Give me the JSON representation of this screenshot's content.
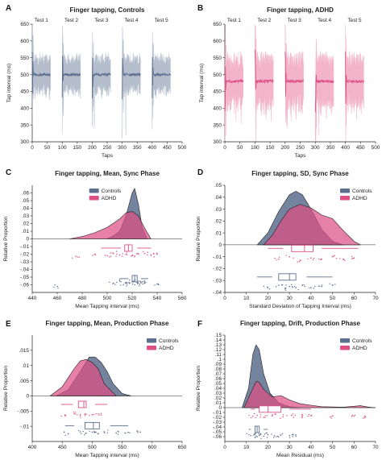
{
  "colors": {
    "controls": "#5c6f8e",
    "adhd": "#de4f84",
    "controls_light": "#b3bdcc",
    "adhd_light": "#f3b4c9"
  },
  "chart_data": [
    {
      "panel": "A",
      "type": "line",
      "title": "Finger tapping, Controls",
      "xlabel": "Taps",
      "ylabel": "Tap interval (ms)",
      "xlim": [
        0,
        500
      ],
      "ylim": [
        300,
        650
      ],
      "xticks": [
        0,
        50,
        100,
        150,
        200,
        250,
        300,
        350,
        400,
        450,
        500
      ],
      "yticks": [
        300,
        350,
        400,
        450,
        500,
        550,
        600,
        650
      ],
      "tests": [
        "Test 1",
        "Test 2",
        "Test 3",
        "Test 4",
        "Test 5"
      ],
      "test_ranges": [
        [
          0,
          61
        ],
        [
          100,
          161
        ],
        [
          200,
          261
        ],
        [
          300,
          361
        ],
        [
          400,
          461
        ]
      ],
      "series": [
        {
          "name": "Controls",
          "values": "mean ≈ 500 ms, band ≈ ±50 ms"
        }
      ]
    },
    {
      "panel": "B",
      "type": "line",
      "title": "Finger tapping, ADHD",
      "xlabel": "Taps",
      "ylabel": "Tap interval (ms)",
      "xlim": [
        0,
        500
      ],
      "ylim": [
        300,
        650
      ],
      "xticks": [
        0,
        50,
        100,
        150,
        200,
        250,
        300,
        350,
        400,
        450,
        500
      ],
      "yticks": [
        300,
        350,
        400,
        450,
        500,
        550,
        600,
        650
      ],
      "tests": [
        "Test 1",
        "Test 2",
        "Test 3",
        "Test 4",
        "Test 5"
      ],
      "test_ranges": [
        [
          0,
          61
        ],
        [
          100,
          161
        ],
        [
          200,
          261
        ],
        [
          300,
          361
        ],
        [
          400,
          461
        ]
      ],
      "series": [
        {
          "name": "ADHD",
          "values": "mean ≈ 480 ms, band ≈ ±70 ms"
        }
      ]
    },
    {
      "panel": "C",
      "type": "area",
      "title": "Finger tapping, Mean, Sync Phase",
      "xlabel": "Mean Tapping interval (ms)",
      "ylabel": "Relative Proportion",
      "xlim": [
        440,
        560
      ],
      "ylim": [
        -0.07,
        0.07
      ],
      "xticks": [
        440,
        460,
        480,
        500,
        520,
        540,
        560
      ],
      "yticks": [
        -0.06,
        -0.05,
        -0.04,
        -0.03,
        -0.02,
        -0.01,
        0,
        0.01,
        0.02,
        0.03,
        0.04,
        0.05,
        0.06
      ],
      "legend": [
        "Controls",
        "ADHD"
      ],
      "legend_position": "top-left",
      "series": [
        {
          "name": "Controls",
          "density_x": [
            500,
            505,
            510,
            515,
            520,
            522,
            525,
            528,
            532
          ],
          "density_y": [
            0,
            0.004,
            0.01,
            0.03,
            0.06,
            0.066,
            0.045,
            0.015,
            0
          ],
          "box": [
            517,
            520,
            522,
            524,
            527
          ],
          "whiskers": [
            510,
            533
          ],
          "box_y": -0.052,
          "points": [
            [
              505,
              -0.058
            ],
            [
              510,
              -0.055
            ],
            [
              513,
              -0.06
            ],
            [
              515,
              -0.057
            ],
            [
              518,
              -0.058
            ],
            [
              520,
              -0.056
            ],
            [
              522,
              -0.06
            ],
            [
              524,
              -0.057
            ],
            [
              526,
              -0.059
            ],
            [
              528,
              -0.056
            ],
            [
              530,
              -0.058
            ],
            [
              460,
              -0.062
            ],
            [
              540,
              -0.059
            ]
          ]
        },
        {
          "name": "ADHD",
          "density_x": [
            470,
            480,
            490,
            500,
            510,
            515,
            520,
            525,
            530,
            535
          ],
          "density_y": [
            0,
            0.003,
            0.008,
            0.015,
            0.026,
            0.034,
            0.036,
            0.03,
            0.014,
            0
          ],
          "box": [
            511,
            514,
            517,
            520,
            524
          ],
          "whiskers": [
            495,
            535
          ],
          "box_y": -0.012,
          "points": [
            [
              475,
              -0.023
            ],
            [
              490,
              -0.02
            ],
            [
              500,
              -0.022
            ],
            [
              505,
              -0.019
            ],
            [
              510,
              -0.021
            ],
            [
              515,
              -0.02
            ],
            [
              520,
              -0.022
            ],
            [
              525,
              -0.02
            ],
            [
              530,
              -0.019
            ],
            [
              535,
              -0.021
            ],
            [
              540,
              -0.02
            ]
          ]
        }
      ]
    },
    {
      "panel": "D",
      "type": "area",
      "title": "Finger tapping, SD, Sync Phase",
      "xlabel": "Standard Deviation of Tapping Interval (ms)",
      "ylabel": "Relative Proportion",
      "xlim": [
        0,
        70
      ],
      "ylim": [
        -0.04,
        0.05
      ],
      "xticks": [
        0,
        10,
        20,
        30,
        40,
        50,
        60,
        70
      ],
      "yticks": [
        -0.04,
        -0.03,
        -0.02,
        -0.01,
        0,
        0.01,
        0.02,
        0.03,
        0.04,
        0.05
      ],
      "legend": [
        "Controls",
        "ADHD"
      ],
      "legend_position": "top-right",
      "series": [
        {
          "name": "Controls",
          "density_x": [
            15,
            20,
            25,
            30,
            33,
            36,
            40,
            45,
            50,
            55
          ],
          "density_y": [
            0,
            0.01,
            0.028,
            0.042,
            0.045,
            0.042,
            0.03,
            0.013,
            0.003,
            0
          ],
          "box": [
            22,
            25,
            30,
            33,
            38
          ],
          "whiskers": [
            15,
            50
          ],
          "box_y": -0.027,
          "points": [
            [
              20,
              -0.036
            ],
            [
              25,
              -0.034
            ],
            [
              28,
              -0.037
            ],
            [
              30,
              -0.035
            ],
            [
              33,
              -0.036
            ],
            [
              36,
              -0.034
            ],
            [
              40,
              -0.036
            ],
            [
              45,
              -0.035
            ],
            [
              50,
              -0.034
            ]
          ]
        },
        {
          "name": "ADHD",
          "density_x": [
            18,
            22,
            26,
            30,
            35,
            40,
            45,
            50,
            55,
            60,
            63
          ],
          "density_y": [
            0,
            0.008,
            0.02,
            0.03,
            0.034,
            0.031,
            0.025,
            0.022,
            0.012,
            0.003,
            0
          ],
          "box": [
            27,
            31,
            37,
            41,
            45
          ],
          "whiskers": [
            20,
            62
          ],
          "box_y": -0.003,
          "points": [
            [
              25,
              -0.012
            ],
            [
              30,
              -0.01
            ],
            [
              35,
              -0.013
            ],
            [
              40,
              -0.011
            ],
            [
              45,
              -0.012
            ],
            [
              50,
              -0.01
            ],
            [
              55,
              -0.012
            ],
            [
              60,
              -0.011
            ]
          ]
        }
      ]
    },
    {
      "panel": "E",
      "type": "area",
      "title": "Finger tapping, Mean, Production Phase",
      "xlabel": "Mean Tapping interval (ms)",
      "ylabel": "Relative Proportion",
      "xlim": [
        400,
        650
      ],
      "ylim": [
        -0.015,
        0.02
      ],
      "xticks": [
        400,
        450,
        500,
        550,
        600,
        650
      ],
      "yticks": [
        -0.01,
        -0.005,
        0,
        0.005,
        0.01,
        0.015
      ],
      "legend": [
        "Controls",
        "ADHD"
      ],
      "legend_position": "top-right",
      "series": [
        {
          "name": "Controls",
          "density_x": [
            440,
            460,
            480,
            495,
            505,
            515,
            525,
            535,
            550,
            565
          ],
          "density_y": [
            0,
            0.002,
            0.008,
            0.0128,
            0.0128,
            0.011,
            0.008,
            0.004,
            0.0008,
            0
          ],
          "box": [
            470,
            488,
            502,
            512,
            530
          ],
          "whiskers": [
            455,
            560
          ],
          "box_y": -0.0098,
          "points": [
            [
              460,
              -0.0125
            ],
            [
              480,
              -0.0118
            ],
            [
              490,
              -0.0123
            ],
            [
              500,
              -0.0119
            ],
            [
              510,
              -0.0124
            ],
            [
              520,
              -0.0118
            ],
            [
              540,
              -0.0122
            ],
            [
              560,
              -0.012
            ],
            [
              580,
              -0.0119
            ]
          ]
        },
        {
          "name": "ADHD",
          "density_x": [
            430,
            450,
            470,
            480,
            490,
            500,
            510,
            520,
            540
          ],
          "density_y": [
            0,
            0.003,
            0.009,
            0.0115,
            0.012,
            0.011,
            0.009,
            0.004,
            0
          ],
          "box": [
            468,
            477,
            486,
            490,
            505
          ],
          "whiskers": [
            448,
            525
          ],
          "box_y": -0.0028,
          "points": [
            [
              455,
              -0.0063
            ],
            [
              470,
              -0.0058
            ],
            [
              480,
              -0.0065
            ],
            [
              490,
              -0.006
            ],
            [
              500,
              -0.0062
            ],
            [
              510,
              -0.0059
            ]
          ]
        }
      ]
    },
    {
      "panel": "F",
      "type": "area",
      "title": "Finger tapping, Drift, Production Phase",
      "xlabel": "Mean Residual (ms)",
      "ylabel": "Relative Proportion",
      "xlim": [
        0,
        70
      ],
      "ylim": [
        -0.07,
        0.15
      ],
      "xticks": [
        0,
        10,
        20,
        30,
        40,
        50,
        60,
        70
      ],
      "yticks": [
        -0.06,
        -0.05,
        -0.04,
        -0.03,
        -0.02,
        -0.01,
        0,
        0.01,
        0.02,
        0.03,
        0.04,
        0.05,
        0.06,
        0.07,
        0.08,
        0.09,
        0.1,
        0.11,
        0.12,
        0.13,
        0.14,
        0.15
      ],
      "legend": [
        "Controls",
        "ADHD"
      ],
      "legend_position": "top-right",
      "series": [
        {
          "name": "Controls",
          "density_x": [
            8,
            11,
            13,
            14.5,
            16,
            18,
            21,
            25,
            30,
            35
          ],
          "density_y": [
            0,
            0.04,
            0.11,
            0.13,
            0.12,
            0.07,
            0.03,
            0.01,
            0.002,
            0
          ],
          "box": [
            12,
            14,
            15,
            16,
            18
          ],
          "whiskers": [
            11,
            20
          ],
          "box_y": -0.045,
          "points": [
            [
              12,
              -0.058
            ],
            [
              14,
              -0.055
            ],
            [
              15,
              -0.06
            ],
            [
              16,
              -0.057
            ],
            [
              18,
              -0.059
            ],
            [
              20,
              -0.056
            ],
            [
              23,
              -0.058
            ],
            [
              26,
              -0.057
            ],
            [
              30,
              -0.058
            ],
            [
              33,
              -0.059
            ]
          ]
        },
        {
          "name": "ADHD",
          "density_x": [
            9,
            12,
            14,
            15,
            16,
            18,
            22,
            26,
            30,
            35,
            40,
            45,
            55,
            63,
            67,
            70
          ],
          "density_y": [
            0,
            0.03,
            0.05,
            0.055,
            0.052,
            0.038,
            0.022,
            0.025,
            0.016,
            0.008,
            0.005,
            0.002,
            0.001,
            0.004,
            0.001,
            0
          ],
          "box": [
            14,
            16,
            20,
            26,
            30
          ],
          "whiskers": [
            12,
            40
          ],
          "box_y": -0.003,
          "points": [
            [
              13,
              -0.018
            ],
            [
              15,
              -0.016
            ],
            [
              18,
              -0.02
            ],
            [
              22,
              -0.017
            ],
            [
              27,
              -0.019
            ],
            [
              31,
              -0.016
            ],
            [
              36,
              -0.018
            ],
            [
              40,
              -0.017
            ],
            [
              49,
              -0.019
            ],
            [
              59,
              -0.018
            ],
            [
              65,
              -0.018
            ]
          ]
        }
      ]
    }
  ]
}
